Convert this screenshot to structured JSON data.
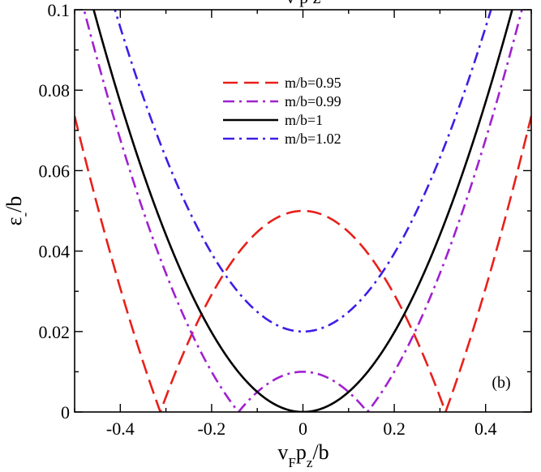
{
  "chart_data": {
    "type": "line",
    "panel_label": "(b)",
    "xlabel_parts": [
      "v",
      "F",
      "p",
      "z",
      "/b"
    ],
    "ylabel_parts": [
      "ε",
      "-",
      "/b"
    ],
    "title_fragment": "v p z",
    "xlim": [
      -0.5,
      0.5
    ],
    "ylim": [
      0,
      0.1
    ],
    "xticks": [
      -0.4,
      -0.2,
      0,
      0.2,
      0.4
    ],
    "xtick_labels": [
      "-0.4",
      "-0.2",
      "0",
      "0.2",
      "0.4"
    ],
    "yticks": [
      0,
      0.02,
      0.04,
      0.06,
      0.08,
      0.1
    ],
    "ytick_labels": [
      "0",
      "0.02",
      "0.04",
      "0.06",
      "0.08",
      "0.1"
    ],
    "formula": "epsilon = |sqrt(p^2 + m^2) - b|, with b = 1",
    "series": [
      {
        "name": "m/b=0.95",
        "m": 0.95,
        "color": "#e8201a",
        "dash": "dashed"
      },
      {
        "name": "m/b=0.99",
        "m": 0.99,
        "color": "#a020d0",
        "dash": "dashdot"
      },
      {
        "name": "m/b=1",
        "m": 1.0,
        "color": "#000000",
        "dash": "solid"
      },
      {
        "name": "m/b=1.02",
        "m": 1.02,
        "color": "#3c1ee6",
        "dash": "dashdot"
      }
    ],
    "legend_position": "upper-center"
  }
}
